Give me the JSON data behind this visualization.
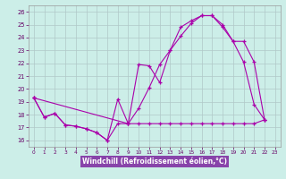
{
  "xlabel": "Windchill (Refroidissement éolien,°C)",
  "background_color": "#cceee8",
  "grid_color": "#b0c8c8",
  "line_color": "#aa00aa",
  "xlim": [
    -0.5,
    23.5
  ],
  "ylim": [
    15.5,
    26.5
  ],
  "yticks": [
    16,
    17,
    18,
    19,
    20,
    21,
    22,
    23,
    24,
    25,
    26
  ],
  "xticks": [
    0,
    1,
    2,
    3,
    4,
    5,
    6,
    7,
    8,
    9,
    10,
    11,
    12,
    13,
    14,
    15,
    16,
    17,
    18,
    19,
    20,
    21,
    22,
    23
  ],
  "xlabel_bg": "#8844aa",
  "xlabel_fg": "#ffffff",
  "tick_color": "#660066",
  "line1_x": [
    0,
    1,
    2,
    3,
    4,
    5,
    6,
    7,
    8,
    9,
    10,
    11,
    12,
    13,
    14,
    15,
    16,
    17,
    18,
    19,
    20,
    21,
    22
  ],
  "line1_y": [
    19.3,
    17.8,
    18.1,
    17.2,
    17.1,
    16.9,
    16.6,
    16.0,
    19.2,
    17.3,
    21.9,
    21.8,
    20.5,
    23.0,
    24.8,
    25.3,
    25.7,
    25.7,
    25.0,
    23.7,
    22.1,
    18.8,
    17.6
  ],
  "line2_x": [
    0,
    1,
    2,
    3,
    4,
    5,
    6,
    7,
    8,
    9,
    10,
    11,
    12,
    13,
    14,
    15,
    16,
    17,
    18,
    19,
    20,
    21,
    22
  ],
  "line2_y": [
    19.3,
    17.8,
    18.1,
    17.2,
    17.1,
    16.9,
    16.6,
    16.0,
    17.3,
    17.3,
    17.3,
    17.3,
    17.3,
    17.3,
    17.3,
    17.3,
    17.3,
    17.3,
    17.3,
    17.3,
    17.3,
    17.3,
    17.6
  ],
  "line3_x": [
    0,
    9,
    10,
    11,
    12,
    13,
    14,
    15,
    16,
    17,
    18,
    19,
    20,
    21,
    22
  ],
  "line3_y": [
    19.3,
    17.3,
    18.5,
    20.1,
    21.9,
    23.0,
    24.1,
    25.1,
    25.7,
    25.7,
    24.8,
    23.7,
    23.7,
    22.1,
    17.6
  ]
}
